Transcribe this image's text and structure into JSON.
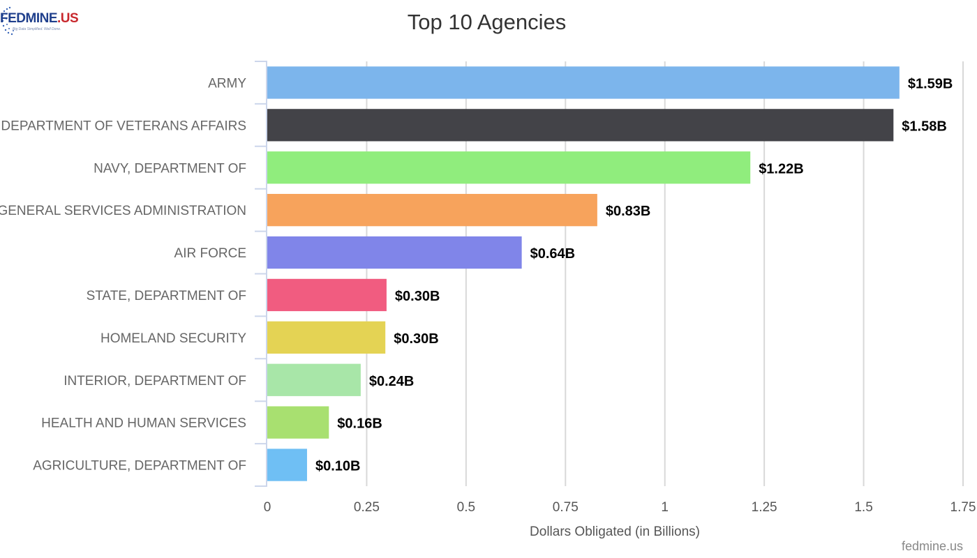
{
  "logo": {
    "brand_prefix": "FED",
    "brand_main": "MINE",
    "brand_suffix": ".US",
    "tagline": "Big Data Simplified. Well Done."
  },
  "credit": "fedmine.us",
  "chart_data": {
    "type": "bar",
    "orientation": "horizontal",
    "title": "Top 10 Agencies",
    "xlabel": "Dollars Obligated (in Billions)",
    "ylabel": "",
    "xlim": [
      0,
      1.75
    ],
    "ticks": [
      0,
      0.25,
      0.5,
      0.75,
      1,
      1.25,
      1.5,
      1.75
    ],
    "tick_labels": [
      "0",
      "0.25",
      "0.5",
      "0.75",
      "1",
      "1.25",
      "1.5",
      "1.75"
    ],
    "grid": true,
    "categories": [
      "ARMY",
      "DEPARTMENT OF VETERANS AFFAIRS",
      "NAVY, DEPARTMENT OF",
      "GENERAL SERVICES ADMINISTRATION",
      "AIR FORCE",
      "STATE, DEPARTMENT OF",
      "HOMELAND SECURITY",
      "INTERIOR, DEPARTMENT OF",
      "HEALTH AND HUMAN SERVICES",
      "AGRICULTURE, DEPARTMENT OF"
    ],
    "values": [
      1.59,
      1.575,
      1.215,
      0.83,
      0.64,
      0.3,
      0.297,
      0.235,
      0.155,
      0.1
    ],
    "data_labels": [
      "$1.59B",
      "$1.58B",
      "$1.22B",
      "$0.83B",
      "$0.64B",
      "$0.30B",
      "$0.30B",
      "$0.24B",
      "$0.16B",
      "$0.10B"
    ],
    "colors": [
      "#7cb5ec",
      "#434348",
      "#90ed7d",
      "#f7a35c",
      "#8085e9",
      "#f15c80",
      "#e4d354",
      "#a8e6a8",
      "#a8e070",
      "#6fbff4"
    ]
  }
}
